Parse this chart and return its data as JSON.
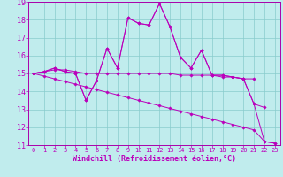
{
  "title": "",
  "xlabel": "Windchill (Refroidissement éolien,°C)",
  "bg_color": "#c0eced",
  "line_color": "#bb00bb",
  "grid_color": "#88cccc",
  "spine_color": "#aa00aa",
  "x": [
    0,
    1,
    2,
    3,
    4,
    5,
    6,
    7,
    8,
    9,
    10,
    11,
    12,
    13,
    14,
    15,
    16,
    17,
    18,
    19,
    20,
    21,
    22,
    23
  ],
  "series1": [
    15.0,
    15.1,
    15.3,
    15.1,
    15.0,
    13.5,
    14.6,
    16.4,
    15.3,
    18.1,
    17.8,
    17.7,
    18.9,
    17.6,
    15.9,
    15.3,
    16.3,
    14.9,
    14.9,
    14.8,
    14.7,
    13.3,
    13.1,
    null
  ],
  "series2": [
    15.0,
    15.1,
    15.3,
    15.1,
    15.0,
    13.5,
    14.6,
    16.4,
    15.3,
    18.1,
    17.8,
    17.7,
    18.9,
    17.6,
    15.9,
    15.3,
    16.3,
    14.9,
    14.9,
    14.8,
    14.7,
    13.3,
    11.2,
    11.1
  ],
  "series3": [
    15.0,
    15.1,
    15.2,
    15.2,
    15.1,
    15.0,
    15.0,
    15.0,
    15.0,
    15.0,
    15.0,
    15.0,
    15.0,
    15.0,
    14.9,
    14.9,
    14.9,
    14.9,
    14.8,
    14.8,
    14.7,
    14.7,
    null,
    null
  ],
  "series4": [
    15.0,
    14.85,
    14.7,
    14.55,
    14.4,
    14.25,
    14.1,
    13.95,
    13.8,
    13.65,
    13.5,
    13.35,
    13.2,
    13.05,
    12.9,
    12.75,
    12.6,
    12.45,
    12.3,
    12.15,
    12.0,
    11.85,
    11.2,
    11.1
  ],
  "ylim": [
    11,
    19
  ],
  "xlim": [
    -0.5,
    23.5
  ],
  "yticks": [
    11,
    12,
    13,
    14,
    15,
    16,
    17,
    18,
    19
  ],
  "xticks": [
    0,
    1,
    2,
    3,
    4,
    5,
    6,
    7,
    8,
    9,
    10,
    11,
    12,
    13,
    14,
    15,
    16,
    17,
    18,
    19,
    20,
    21,
    22,
    23
  ],
  "xlabel_fontsize": 6,
  "ytick_fontsize": 6,
  "xtick_fontsize": 5
}
